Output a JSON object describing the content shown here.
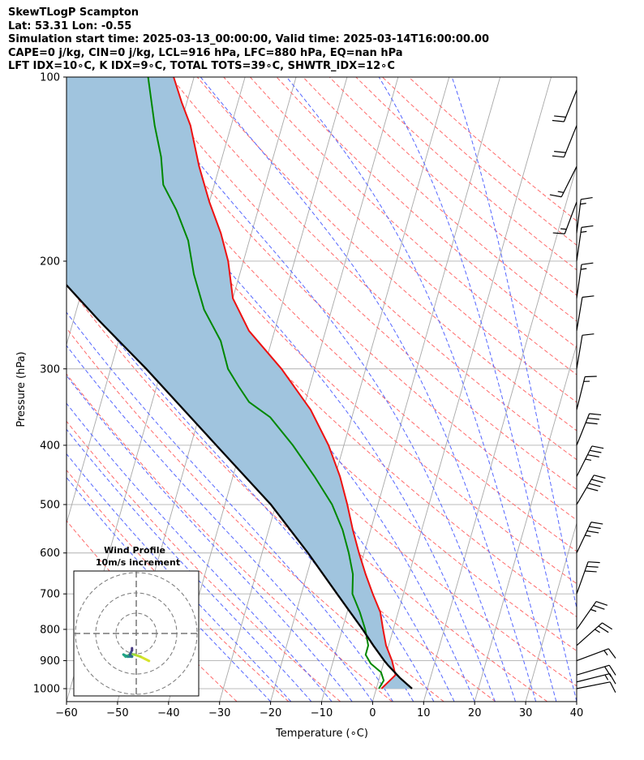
{
  "header": {
    "line1": "SkewTLogP Scampton",
    "line2": "Lat: 53.31   Lon: -0.55",
    "line3": "Simulation start time: 2025-03-13_00:00:00, Valid time: 2025-03-14T16:00:00.00",
    "line4": "CAPE=0 j/kg, CIN=0 j/kg, LCL=916 hPa, LFC=880 hPa, EQ=nan hPa",
    "line5": "LFT IDX=10∘C, K IDX=9∘C, TOTAL TOTS=39∘C, SHWTR_IDX=12∘C"
  },
  "hodograph": {
    "title": "Wind Profile",
    "subtitle": "10m/s increment"
  },
  "chart_data": {
    "type": "line",
    "xlabel": "Temperature (∘C)",
    "ylabel": "Pressure (hPa)",
    "xlim": [
      -60,
      40
    ],
    "ylim": [
      1050,
      100
    ],
    "y_scale": "log",
    "skew": true,
    "x_ticks": [
      -60,
      -50,
      -40,
      -30,
      -20,
      -10,
      0,
      10,
      20,
      30,
      40
    ],
    "x_tick_labels": [
      "−60",
      "−50",
      "−40",
      "−30",
      "−20",
      "−10",
      "0",
      "10",
      "20",
      "30",
      "40"
    ],
    "y_ticks": [
      1000,
      900,
      800,
      700,
      600,
      500,
      400,
      300,
      200,
      100
    ],
    "grid": true,
    "cape_shading_color": "#a0c4de",
    "series": [
      {
        "name": "Temperature",
        "color": "#ee1111",
        "points": [
          [
            1000,
            1
          ],
          [
            950,
            3
          ],
          [
            900,
            1.5
          ],
          [
            850,
            -0.5
          ],
          [
            800,
            -2
          ],
          [
            750,
            -3.5
          ],
          [
            700,
            -6
          ],
          [
            650,
            -8.5
          ],
          [
            600,
            -11
          ],
          [
            550,
            -13.5
          ],
          [
            500,
            -16
          ],
          [
            450,
            -19
          ],
          [
            400,
            -23
          ],
          [
            350,
            -28.5
          ],
          [
            300,
            -36.5
          ],
          [
            260,
            -45
          ],
          [
            230,
            -50
          ],
          [
            200,
            -53
          ],
          [
            180,
            -56
          ],
          [
            160,
            -60
          ],
          [
            140,
            -64
          ],
          [
            120,
            -68
          ],
          [
            110,
            -71
          ],
          [
            100,
            -74
          ]
        ]
      },
      {
        "name": "Dewpoint",
        "color": "#008800",
        "points": [
          [
            1000,
            0.5
          ],
          [
            970,
            1
          ],
          [
            940,
            0
          ],
          [
            910,
            -2.5
          ],
          [
            880,
            -4
          ],
          [
            850,
            -4
          ],
          [
            800,
            -5.5
          ],
          [
            750,
            -7.5
          ],
          [
            700,
            -10
          ],
          [
            650,
            -11
          ],
          [
            600,
            -13
          ],
          [
            550,
            -15.5
          ],
          [
            500,
            -19
          ],
          [
            450,
            -24
          ],
          [
            400,
            -30
          ],
          [
            360,
            -36
          ],
          [
            340,
            -41
          ],
          [
            320,
            -44
          ],
          [
            300,
            -47
          ],
          [
            270,
            -50
          ],
          [
            240,
            -55
          ],
          [
            210,
            -59
          ],
          [
            185,
            -62
          ],
          [
            165,
            -66
          ],
          [
            150,
            -70
          ],
          [
            135,
            -72
          ],
          [
            120,
            -75
          ],
          [
            100,
            -79
          ]
        ]
      },
      {
        "name": "Parcel",
        "color": "#000000",
        "points": [
          [
            1000,
            7
          ],
          [
            960,
            4
          ],
          [
            930,
            2
          ],
          [
            916,
            1
          ],
          [
            900,
            0
          ],
          [
            850,
            -3
          ],
          [
            800,
            -6
          ],
          [
            700,
            -13
          ],
          [
            600,
            -21
          ],
          [
            500,
            -31
          ],
          [
            400,
            -45
          ],
          [
            300,
            -63
          ],
          [
            250,
            -75
          ],
          [
            200,
            -89
          ],
          [
            150,
            -108
          ],
          [
            100,
            -135
          ]
        ]
      }
    ],
    "wind_barbs": [
      {
        "p": 1000,
        "u": -5,
        "v": -1
      },
      {
        "p": 975,
        "u": -8,
        "v": -2
      },
      {
        "p": 950,
        "u": -10,
        "v": -3
      },
      {
        "p": 900,
        "u": -8,
        "v": -3
      },
      {
        "p": 850,
        "u": -9,
        "v": -8
      },
      {
        "p": 800,
        "u": -7,
        "v": -10
      },
      {
        "p": 700,
        "u": -5,
        "v": -14
      },
      {
        "p": 600,
        "u": -8,
        "v": -17
      },
      {
        "p": 500,
        "u": -10,
        "v": -17
      },
      {
        "p": 450,
        "u": -8,
        "v": -16
      },
      {
        "p": 400,
        "u": -6,
        "v": -15
      },
      {
        "p": 350,
        "u": -2,
        "v": -8
      },
      {
        "p": 300,
        "u": -1,
        "v": -6
      },
      {
        "p": 260,
        "u": -1,
        "v": -6
      },
      {
        "p": 230,
        "u": -1,
        "v": -7
      },
      {
        "p": 200,
        "u": -1,
        "v": -7
      },
      {
        "p": 180,
        "u": -1,
        "v": -8
      },
      {
        "p": 160,
        "u": 3,
        "v": 8
      },
      {
        "p": 140,
        "u": 4,
        "v": 8
      },
      {
        "p": 120,
        "u": 4,
        "v": 10
      },
      {
        "p": 105,
        "u": 4,
        "v": 10
      }
    ],
    "hodograph_points": [
      [
        6,
        -3
      ],
      [
        2,
        -1
      ],
      [
        -1,
        0
      ],
      [
        -3,
        0
      ],
      [
        -5,
        -1
      ],
      [
        -6,
        0
      ],
      [
        -4,
        -1
      ],
      [
        -2,
        -1
      ],
      [
        -3,
        0
      ],
      [
        -2,
        2
      ],
      [
        -2,
        3
      ]
    ]
  }
}
